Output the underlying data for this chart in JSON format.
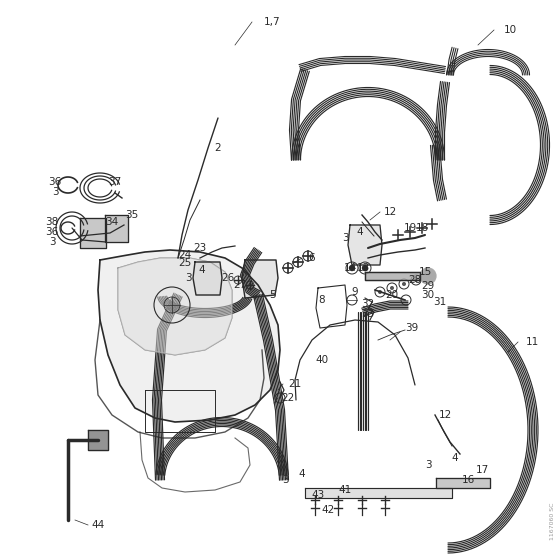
{
  "bg_color": "#ffffff",
  "line_color": "#2a2a2a",
  "watermark": "1167060 SC",
  "fig_w": 5.6,
  "fig_h": 5.6,
  "dpi": 100
}
